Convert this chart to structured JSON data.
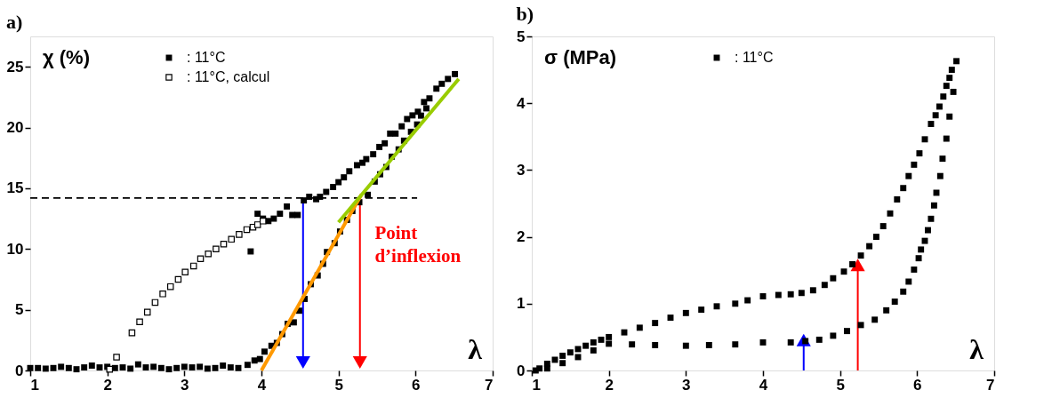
{
  "chart_data": [
    {
      "type": "scatter",
      "title": "a)",
      "ylabel": "χ (%)",
      "xlabel": "λ",
      "legend": "top left",
      "grid": false,
      "xlim": [
        1,
        7
      ],
      "ylim": [
        0,
        27.5
      ],
      "xticks": [
        1,
        2,
        3,
        4,
        5,
        6,
        7
      ],
      "yticks": [
        0,
        5,
        10,
        15,
        20,
        25
      ],
      "annotations": [
        "Point d’inflexion"
      ],
      "series": [
        {
          "name": ": 11°C",
          "marker": "square",
          "color": "#000000",
          "x": [
            1.0,
            1.1,
            1.2,
            1.3,
            1.4,
            1.5,
            1.6,
            1.7,
            1.8,
            1.9,
            2.0,
            2.1,
            2.2,
            2.3,
            2.4,
            2.5,
            2.6,
            2.7,
            2.8,
            2.9,
            3.0,
            3.1,
            3.2,
            3.3,
            3.4,
            3.5,
            3.6,
            3.7,
            3.82,
            3.91,
            3.98,
            4.04,
            4.13,
            4.2,
            4.27,
            4.34,
            4.42,
            4.49,
            4.56,
            4.64,
            4.73,
            4.8,
            4.85,
            4.95,
            5.02,
            5.11,
            5.18,
            5.27,
            5.38,
            5.47,
            5.54,
            5.62,
            5.69,
            5.78,
            5.85,
            5.94,
            6.02,
            6.07,
            6.14,
            3.86,
            3.95,
            4.02,
            4.09,
            4.16,
            4.24,
            4.33,
            4.4,
            4.47,
            4.55,
            4.62,
            4.71,
            4.76,
            4.84,
            4.93,
            5.0,
            5.07,
            5.14,
            5.24,
            5.31,
            5.36,
            5.45,
            5.53,
            5.6,
            5.67,
            5.74,
            5.82,
            5.89,
            5.96,
            6.03,
            6.11,
            6.18,
            6.27,
            6.34,
            6.42,
            6.51
          ],
          "values": [
            0.2,
            0.2,
            0.15,
            0.2,
            0.3,
            0.2,
            0.1,
            0.25,
            0.4,
            0.25,
            0.3,
            0.2,
            0.25,
            0.15,
            0.5,
            0.25,
            0.3,
            0.2,
            0.1,
            0.2,
            0.3,
            0.25,
            0.3,
            0.15,
            0.2,
            0.4,
            0.25,
            0.2,
            0.46,
            0.82,
            0.94,
            1.55,
            2.03,
            2.27,
            2.99,
            3.84,
            3.96,
            4.92,
            5.89,
            7.1,
            7.82,
            8.78,
            9.75,
            10.48,
            11.44,
            12.4,
            13.13,
            13.85,
            14.46,
            15.55,
            16.15,
            16.75,
            17.6,
            18.2,
            18.92,
            19.65,
            20.25,
            20.98,
            21.58,
            9.8,
            12.9,
            12.5,
            12.3,
            12.5,
            12.9,
            13.5,
            12.8,
            12.8,
            14.0,
            14.3,
            14.1,
            14.3,
            14.7,
            15.1,
            15.5,
            15.9,
            16.4,
            16.9,
            17.1,
            17.4,
            17.8,
            18.4,
            18.7,
            19.5,
            19.5,
            20.1,
            20.7,
            21.0,
            21.3,
            22.1,
            22.4,
            23.2,
            23.6,
            24.0,
            24.4
          ]
        },
        {
          "name": ": 11°C, calcul",
          "marker": "square",
          "color": "#ffffff",
          "x": [
            2.03,
            2.12,
            2.32,
            2.42,
            2.52,
            2.62,
            2.72,
            2.82,
            2.92,
            3.01,
            3.12,
            3.21,
            3.31,
            3.41,
            3.51,
            3.61,
            3.71,
            3.81,
            3.89,
            3.95,
            4.02
          ],
          "values": [
            0.1,
            1.1,
            3.1,
            4.0,
            4.8,
            5.6,
            6.3,
            6.9,
            7.5,
            8.1,
            8.6,
            9.2,
            9.6,
            10.0,
            10.4,
            10.8,
            11.2,
            11.6,
            11.8,
            12.0,
            12.3
          ]
        },
        {
          "type": "line",
          "marker": "none",
          "line_style": "dashed",
          "color": "#000000",
          "x": [
            1,
            6.02
          ],
          "values": [
            14.2,
            14.2
          ]
        },
        {
          "type": "line",
          "marker": "none",
          "line_style": "solid",
          "color": "#ff9900",
          "x": [
            4.0,
            5.3
          ],
          "values": [
            0,
            14.5
          ]
        },
        {
          "type": "line",
          "marker": "none",
          "line_style": "solid",
          "color": "#99cc00",
          "x": [
            5.0,
            6.56
          ],
          "values": [
            12.2,
            24.0
          ]
        }
      ]
    },
    {
      "type": "scatter",
      "title": "b)",
      "ylabel": "σ (MPa)",
      "xlabel": "λ",
      "legend": "top",
      "grid": false,
      "xlim": [
        1,
        7
      ],
      "ylim": [
        0,
        5
      ],
      "xticks": [
        1,
        2,
        3,
        4,
        5,
        6,
        7
      ],
      "yticks": [
        0,
        1,
        2,
        3,
        4,
        5
      ],
      "series": [
        {
          "name": ": 11°C",
          "marker": "square",
          "color": "#000000",
          "x": [
            1.05,
            1.1,
            1.2,
            1.3,
            1.4,
            1.5,
            1.6,
            1.7,
            1.8,
            1.9,
            2.0,
            2.2,
            2.4,
            2.6,
            2.8,
            3.0,
            3.2,
            3.4,
            3.64,
            3.8,
            4.0,
            4.2,
            4.36,
            4.5,
            4.65,
            4.8,
            4.91,
            5.05,
            5.16,
            5.27,
            5.38,
            5.47,
            5.56,
            5.65,
            5.74,
            5.82,
            5.89,
            5.96,
            6.03,
            6.1,
            6.18,
            6.24,
            6.29,
            6.34,
            6.38,
            6.42,
            6.45,
            6.51,
            6.47,
            6.42,
            6.38,
            6.33,
            6.3,
            6.25,
            6.22,
            6.18,
            6.14,
            6.1,
            6.05,
            6.02,
            5.96,
            5.89,
            5.82,
            5.71,
            5.6,
            5.45,
            5.27,
            5.09,
            4.91,
            4.73,
            4.55,
            4.36,
            4.0,
            3.64,
            3.3,
            3.0,
            2.6,
            2.3,
            2.0,
            1.8,
            1.6,
            1.4,
            1.2
          ],
          "values": [
            0.0,
            0.03,
            0.1,
            0.16,
            0.22,
            0.27,
            0.32,
            0.37,
            0.42,
            0.46,
            0.5,
            0.57,
            0.64,
            0.71,
            0.79,
            0.86,
            0.91,
            0.96,
            1.0,
            1.05,
            1.11,
            1.13,
            1.14,
            1.16,
            1.2,
            1.28,
            1.38,
            1.48,
            1.59,
            1.72,
            1.86,
            2.0,
            2.16,
            2.35,
            2.56,
            2.73,
            2.91,
            3.08,
            3.25,
            3.46,
            3.69,
            3.82,
            3.95,
            4.1,
            4.26,
            4.38,
            4.5,
            4.63,
            4.17,
            3.8,
            3.47,
            3.17,
            2.91,
            2.66,
            2.47,
            2.27,
            2.1,
            1.94,
            1.81,
            1.68,
            1.51,
            1.33,
            1.18,
            1.03,
            0.9,
            0.76,
            0.68,
            0.59,
            0.52,
            0.46,
            0.44,
            0.42,
            0.42,
            0.39,
            0.38,
            0.37,
            0.38,
            0.39,
            0.4,
            0.3,
            0.2,
            0.11,
            0.03
          ]
        }
      ]
    }
  ]
}
